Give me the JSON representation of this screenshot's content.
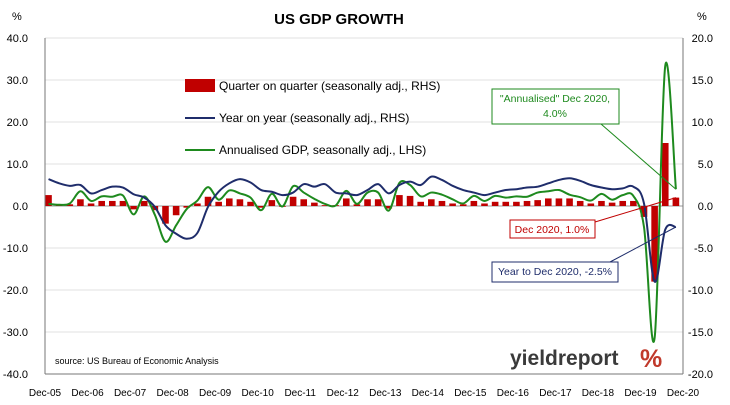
{
  "chart_data": {
    "type": "bar+line",
    "title": "US GDP GROWTH",
    "left_axis": {
      "unit": "%",
      "ticks": [
        "40.0",
        "30.0",
        "20.0",
        "10.0",
        "0.0",
        "-10.0",
        "-20.0",
        "-30.0",
        "-40.0"
      ],
      "range": [
        -40,
        40
      ]
    },
    "right_axis": {
      "unit": "%",
      "ticks": [
        "20.0",
        "15.0",
        "10.0",
        "5.0",
        "0.0",
        "-5.0",
        "-10.0",
        "-15.0",
        "-20.0"
      ],
      "range": [
        -20,
        20
      ]
    },
    "x_labels": [
      "Dec-05",
      "Dec-06",
      "Dec-07",
      "Dec-08",
      "Dec-09",
      "Dec-10",
      "Dec-11",
      "Dec-12",
      "Dec-13",
      "Dec-14",
      "Dec-15",
      "Dec-16",
      "Dec-17",
      "Dec-18",
      "Dec-19",
      "Dec-20"
    ],
    "x_range": [
      2005.917,
      2020.917
    ],
    "legend": [
      {
        "label": "Quarter on quarter (seasonally adj., RHS)",
        "color": "#c00000",
        "kind": "bar"
      },
      {
        "label": "Year on year (seasonally adj., RHS)",
        "color": "#1f2d6b",
        "kind": "line"
      },
      {
        "label": "Annualised GDP, seasonally adj., LHS)",
        "color": "#1e8a1e",
        "kind": "line"
      }
    ],
    "series": [
      {
        "name": "Quarter on quarter (seasonally adj., RHS)",
        "axis": "right",
        "type": "bar",
        "color": "#c00000",
        "x": [
          2006.0,
          2006.25,
          2006.5,
          2006.75,
          2007.0,
          2007.25,
          2007.5,
          2007.75,
          2008.0,
          2008.25,
          2008.5,
          2008.75,
          2009.0,
          2009.25,
          2009.5,
          2009.75,
          2010.0,
          2010.25,
          2010.5,
          2010.75,
          2011.0,
          2011.25,
          2011.5,
          2011.75,
          2012.0,
          2012.25,
          2012.5,
          2012.75,
          2013.0,
          2013.25,
          2013.5,
          2013.75,
          2014.0,
          2014.25,
          2014.5,
          2014.75,
          2015.0,
          2015.25,
          2015.5,
          2015.75,
          2016.0,
          2016.25,
          2016.5,
          2016.75,
          2017.0,
          2017.25,
          2017.5,
          2017.75,
          2018.0,
          2018.25,
          2018.5,
          2018.75,
          2019.0,
          2019.25,
          2019.5,
          2019.75,
          2020.0,
          2020.25,
          2020.5,
          2020.75
        ],
        "values": [
          1.3,
          0.2,
          0.2,
          0.8,
          0.3,
          0.6,
          0.6,
          0.6,
          -0.4,
          0.6,
          -0.5,
          -2.1,
          -1.1,
          -0.2,
          0.3,
          1.1,
          0.5,
          0.9,
          0.8,
          0.5,
          -0.2,
          0.7,
          -0.1,
          1.1,
          0.8,
          0.4,
          0.1,
          0.1,
          0.9,
          0.2,
          0.8,
          0.8,
          -0.3,
          1.3,
          1.2,
          0.5,
          0.8,
          0.6,
          0.3,
          0.2,
          0.6,
          0.3,
          0.5,
          0.5,
          0.5,
          0.6,
          0.7,
          0.9,
          0.9,
          0.9,
          0.6,
          0.3,
          0.6,
          0.4,
          0.6,
          0.6,
          -1.3,
          -9.0,
          7.5,
          1.0
        ]
      },
      {
        "name": "Year on year (seasonally adj., RHS)",
        "axis": "right",
        "type": "line",
        "color": "#1f2d6b",
        "x": [
          2006.0,
          2006.25,
          2006.5,
          2006.75,
          2007.0,
          2007.25,
          2007.5,
          2007.75,
          2008.0,
          2008.25,
          2008.5,
          2008.75,
          2009.0,
          2009.25,
          2009.5,
          2009.75,
          2010.0,
          2010.25,
          2010.5,
          2010.75,
          2011.0,
          2011.25,
          2011.5,
          2011.75,
          2012.0,
          2012.25,
          2012.5,
          2012.75,
          2013.0,
          2013.25,
          2013.5,
          2013.75,
          2014.0,
          2014.25,
          2014.5,
          2014.75,
          2015.0,
          2015.25,
          2015.5,
          2015.75,
          2016.0,
          2016.25,
          2016.5,
          2016.75,
          2017.0,
          2017.25,
          2017.5,
          2017.75,
          2018.0,
          2018.25,
          2018.5,
          2018.75,
          2019.0,
          2019.25,
          2019.5,
          2019.75,
          2020.0,
          2020.25,
          2020.5,
          2020.75
        ],
        "values": [
          3.2,
          2.7,
          2.4,
          2.5,
          1.5,
          1.9,
          2.3,
          2.2,
          1.4,
          1.0,
          -0.1,
          -2.3,
          -3.3,
          -3.9,
          -3.2,
          -0.1,
          1.7,
          2.7,
          3.2,
          2.8,
          1.9,
          1.7,
          1.3,
          1.6,
          2.6,
          2.3,
          2.6,
          1.6,
          1.5,
          1.3,
          1.9,
          2.6,
          1.5,
          2.5,
          2.9,
          2.5,
          3.5,
          3.1,
          2.4,
          1.9,
          1.6,
          1.3,
          1.6,
          1.9,
          2.0,
          2.2,
          2.3,
          2.7,
          3.1,
          3.3,
          3.0,
          2.5,
          2.2,
          2.0,
          2.1,
          2.3,
          0.3,
          -9.0,
          -2.8,
          -2.5
        ]
      },
      {
        "name": "Annualised GDP, seasonally adj., LHS)",
        "axis": "left",
        "type": "line",
        "color": "#1e8a1e",
        "x": [
          2006.0,
          2006.25,
          2006.5,
          2006.75,
          2007.0,
          2007.25,
          2007.5,
          2007.75,
          2008.0,
          2008.25,
          2008.5,
          2008.75,
          2009.0,
          2009.25,
          2009.5,
          2009.75,
          2010.0,
          2010.25,
          2010.5,
          2010.75,
          2011.0,
          2011.25,
          2011.5,
          2011.75,
          2012.0,
          2012.25,
          2012.5,
          2012.75,
          2013.0,
          2013.25,
          2013.5,
          2013.75,
          2014.0,
          2014.25,
          2014.5,
          2014.75,
          2015.0,
          2015.25,
          2015.5,
          2015.75,
          2016.0,
          2016.25,
          2016.5,
          2016.75,
          2017.0,
          2017.25,
          2017.5,
          2017.75,
          2018.0,
          2018.25,
          2018.5,
          2018.75,
          2019.0,
          2019.25,
          2019.5,
          2019.75,
          2020.0,
          2020.25,
          2020.5,
          2020.75
        ],
        "values": [
          0.5,
          0.3,
          0.6,
          3.5,
          1.2,
          2.3,
          2.2,
          2.5,
          -2.0,
          2.3,
          -2.1,
          -8.5,
          -4.6,
          -0.7,
          1.3,
          4.5,
          1.5,
          3.7,
          3.0,
          2.0,
          -1.0,
          2.9,
          -0.1,
          4.7,
          3.2,
          1.7,
          0.5,
          0.1,
          3.6,
          0.5,
          3.2,
          3.2,
          -1.1,
          5.5,
          5.0,
          2.3,
          3.2,
          2.7,
          1.6,
          0.6,
          2.4,
          1.2,
          2.4,
          2.0,
          2.3,
          2.2,
          3.2,
          3.5,
          3.8,
          2.7,
          2.1,
          1.3,
          2.9,
          1.5,
          2.6,
          2.4,
          -5.0,
          -31.4,
          33.4,
          4.0
        ]
      }
    ],
    "annotations": [
      {
        "text_lines": [
          "\"Annualised\" Dec 2020,",
          "4.0%"
        ],
        "color": "#1e8a1e",
        "point_axis": "left",
        "point_x": 2020.75,
        "point_y": 4.0
      },
      {
        "text_lines": [
          "Dec 2020, 1.0%"
        ],
        "color": "#c00000",
        "point_axis": "right",
        "point_x": 2020.75,
        "point_y": 1.0
      },
      {
        "text_lines": [
          "Year to Dec 2020, -2.5%"
        ],
        "color": "#1f2d6b",
        "point_axis": "right",
        "point_x": 2020.75,
        "point_y": -2.5
      }
    ],
    "source": "source: US Bureau of Economic Analysis",
    "logo": {
      "text": "yieldreport",
      "symbol": "%"
    }
  }
}
